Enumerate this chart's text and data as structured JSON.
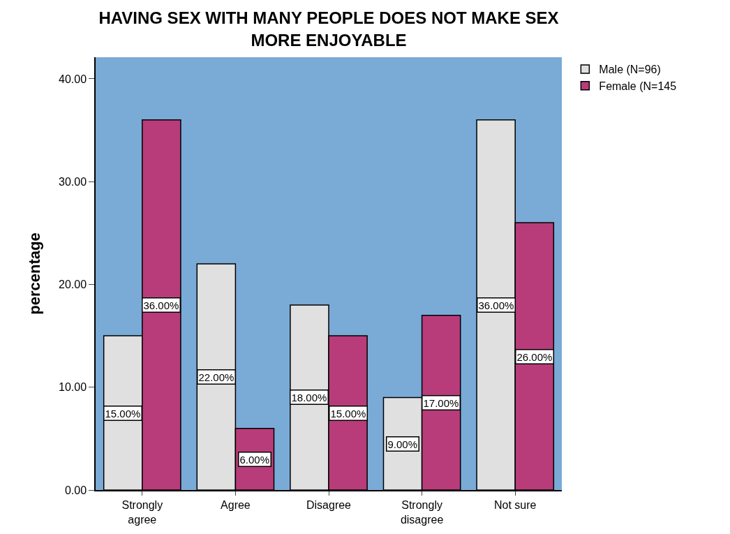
{
  "chart_data": {
    "type": "bar",
    "title": "HAVING SEX WITH MANY PEOPLE DOES NOT MAKE SEX MORE ENJOYABLE",
    "ylabel": "percentage",
    "categories": [
      "Strongly agree",
      "Agree",
      "Disagree",
      "Strongly disagree",
      "Not sure"
    ],
    "series": [
      {
        "name": "Male (N=96)",
        "color": "#e0e0e0",
        "values": [
          15,
          22,
          18,
          9,
          36
        ],
        "value_labels": [
          "15.00%",
          "22.00%",
          "18.00%",
          "9.00%",
          "36.00%"
        ]
      },
      {
        "name": "Female (N=145",
        "color": "#b83c7a",
        "values": [
          36,
          6,
          15,
          17,
          26
        ],
        "value_labels": [
          "36.00%",
          "6.00%",
          "15.00%",
          "17.00%",
          "26.00%"
        ]
      }
    ],
    "ylim": [
      0,
      42.1
    ],
    "yticks": [
      {
        "value": 0,
        "label": "0.00"
      },
      {
        "value": 10,
        "label": "10.00"
      },
      {
        "value": 20,
        "label": "20.00"
      },
      {
        "value": 30,
        "label": "30.00"
      },
      {
        "value": 40,
        "label": "40.00"
      }
    ],
    "grid": false,
    "legend": "top right"
  }
}
